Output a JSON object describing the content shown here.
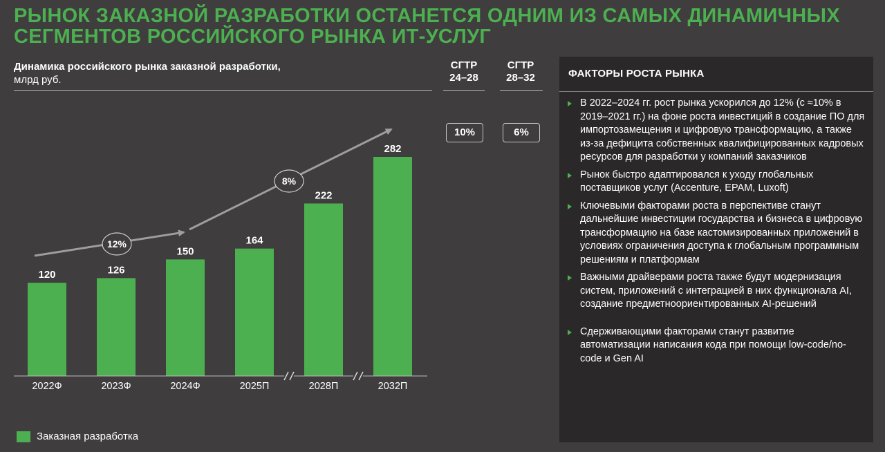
{
  "page": {
    "title": "РЫНОК ЗАКАЗНОЙ РАЗРАБОТКИ ОСТАНЕТСЯ ОДНИМ ИЗ САМЫХ ДИНАМИЧНЫХ СЕГМЕНТОВ РОССИЙСКОГО РЫНКА ИТ-УСЛУГ"
  },
  "chart_header": {
    "line1": "Динамика российского рынка заказной разработки,",
    "line2": "млрд руб."
  },
  "cagr": [
    {
      "label_top": "CГТР",
      "label_bottom": "24–28",
      "value": "10%"
    },
    {
      "label_top": "CГТР",
      "label_bottom": "28–32",
      "value": "6%"
    }
  ],
  "chart_data": {
    "type": "bar",
    "title": "Динамика российского рынка заказной разработки, млрд руб.",
    "categories": [
      "2022Ф",
      "2023Ф",
      "2024Ф",
      "2025П",
      "2028П",
      "2032П"
    ],
    "series": [
      {
        "name": "Заказная разработка",
        "values": [
          120,
          126,
          150,
          164,
          222,
          282
        ],
        "color": "#4caf50"
      }
    ],
    "axis_breaks_after": [
      "2025П",
      "2028П"
    ],
    "growth_annotations": [
      {
        "from": "2022Ф",
        "to": "2024Ф",
        "label": "12%"
      },
      {
        "from": "2024Ф",
        "to": "2032П",
        "label": "8%"
      }
    ],
    "ylim": [
      0,
      282
    ],
    "grid": false,
    "legend_position": "bottom-left"
  },
  "legend": {
    "label": "Заказная разработка",
    "color": "#4caf50"
  },
  "factors_panel": {
    "title": "ФАКТОРЫ РОСТА РЫНКА",
    "items": [
      "В 2022–2024 гг. рост рынка ускорился до 12% (с ≈10% в 2019–2021 гг.) на фоне роста инвестиций в создание ПО для импортозамещения и цифровую трансформацию, а также из-за дефицита собственных квалифицированных кадровых ресурсов для разработки у компаний заказчиков",
      "Рынок быстро адаптировался к уходу глобальных поставщиков услуг (Accenture, EPAM, Luxoft)",
      "Ключевыми факторами роста в перспективе станут дальнейшие инвестиции государства и бизнеса в цифровую трансформацию на базе кастомизированных приложений в условиях ограничения доступа к глобальным программным решениям и платформам",
      "Важными драйверами роста также будут модернизация систем, приложений с интеграцией в них функционала AI, создание предметноориентированных AI-решений",
      "Сдерживающими факторами станут развитие автоматизации написания кода при помощи low-code/no-code и Gen AI"
    ]
  },
  "colors": {
    "background": "#3f3d3d",
    "panel": "#2a2828",
    "accent": "#4caf50",
    "arrow": "#9e9e9e"
  }
}
